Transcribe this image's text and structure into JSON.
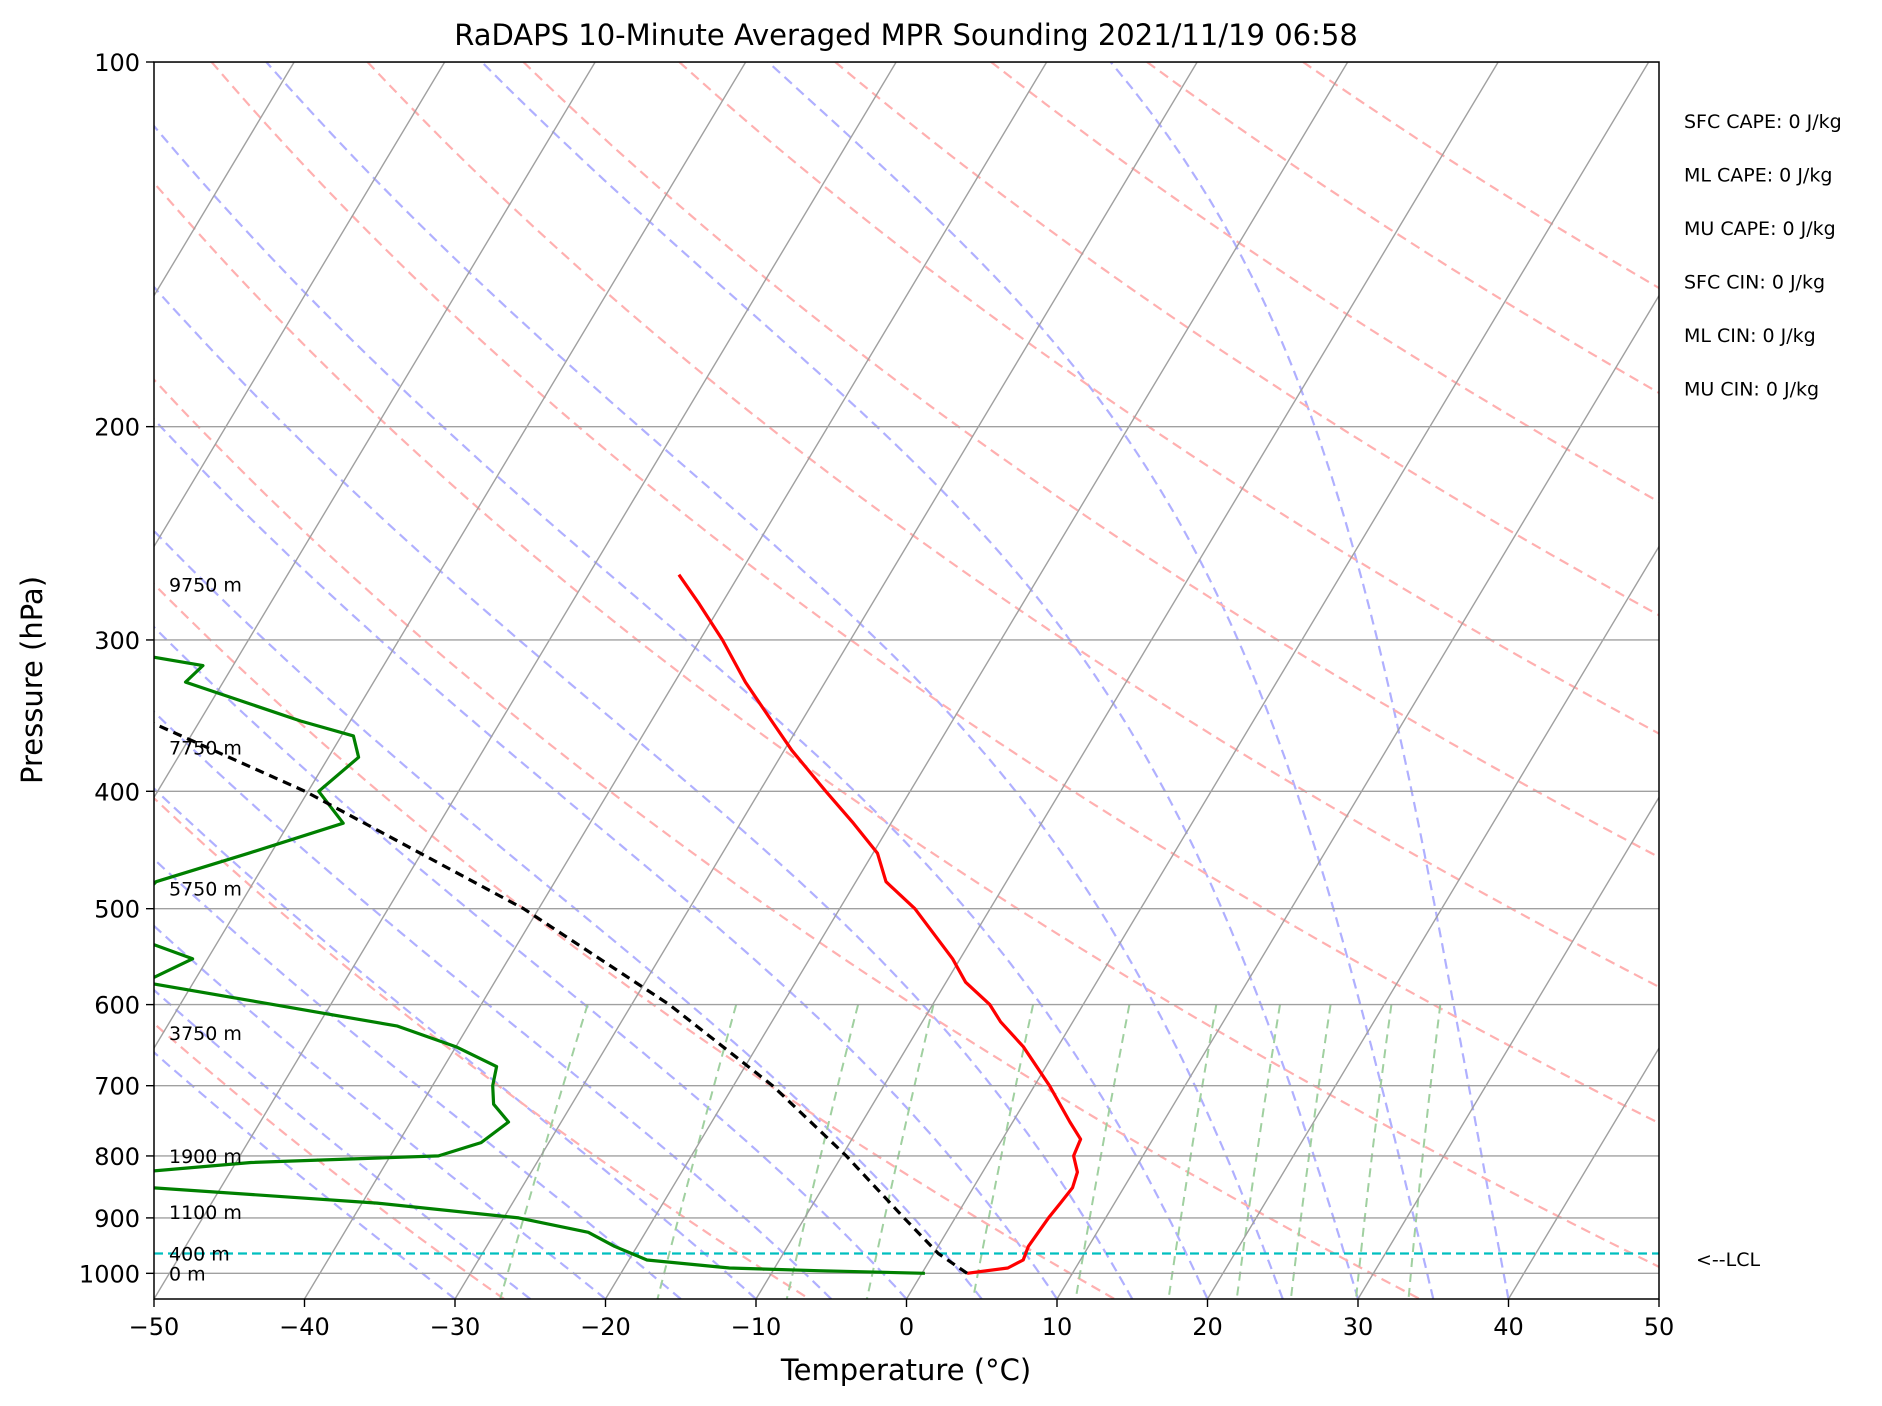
{
  "chart_data": {
    "type": "line",
    "title": "RaDAPS 10-Minute Averaged MPR Sounding 2021/11/19 06:58",
    "xlabel": "Temperature (°C)",
    "ylabel": "Pressure (hPa)",
    "xlim": [
      -50,
      50
    ],
    "ylim": [
      1050,
      100
    ],
    "yscale": "log",
    "skew": true,
    "grid": true,
    "x_ticks": [
      "−50",
      "−40",
      "−30",
      "−20",
      "−10",
      "0",
      "10",
      "20",
      "30",
      "40",
      "50"
    ],
    "x_tick_values": [
      -50,
      -40,
      -30,
      -20,
      -10,
      0,
      10,
      20,
      30,
      40,
      50
    ],
    "y_ticks": [
      "100",
      "200",
      "300",
      "400",
      "500",
      "600",
      "700",
      "800",
      "900",
      "1000"
    ],
    "y_tick_values": [
      100,
      200,
      300,
      400,
      500,
      600,
      700,
      800,
      900,
      1000
    ],
    "series": [
      {
        "key": "temperature",
        "color": "#ff0000",
        "points": [
          [
            1000,
            3.0
          ],
          [
            990,
            5.5
          ],
          [
            975,
            6.2
          ],
          [
            950,
            6.0
          ],
          [
            925,
            6.1
          ],
          [
            900,
            6.2
          ],
          [
            875,
            6.4
          ],
          [
            850,
            6.6
          ],
          [
            825,
            6.3
          ],
          [
            800,
            5.4
          ],
          [
            775,
            5.2
          ],
          [
            750,
            3.8
          ],
          [
            700,
            1.0
          ],
          [
            650,
            -2.3
          ],
          [
            620,
            -4.8
          ],
          [
            600,
            -6.2
          ],
          [
            575,
            -8.7
          ],
          [
            550,
            -10.5
          ],
          [
            500,
            -15.0
          ],
          [
            475,
            -18.0
          ],
          [
            450,
            -19.7
          ],
          [
            425,
            -22.5
          ],
          [
            400,
            -25.6
          ],
          [
            370,
            -29.5
          ],
          [
            350,
            -32.0
          ],
          [
            325,
            -35.3
          ],
          [
            300,
            -38.5
          ],
          [
            280,
            -41.5
          ],
          [
            265,
            -44.0
          ]
        ]
      },
      {
        "key": "dewpoint",
        "color": "#008000",
        "points": [
          [
            1000,
            0.2
          ],
          [
            995,
            -7.0
          ],
          [
            990,
            -13.0
          ],
          [
            975,
            -18.8
          ],
          [
            950,
            -21.5
          ],
          [
            925,
            -23.8
          ],
          [
            900,
            -29.0
          ],
          [
            875,
            -39.0
          ],
          [
            850,
            -54.5
          ],
          [
            825,
            -56.0
          ],
          [
            810,
            -49.0
          ],
          [
            800,
            -36.8
          ],
          [
            780,
            -34.5
          ],
          [
            750,
            -33.5
          ],
          [
            725,
            -35.2
          ],
          [
            700,
            -36.0
          ],
          [
            675,
            -36.5
          ],
          [
            650,
            -40.0
          ],
          [
            625,
            -44.7
          ],
          [
            600,
            -53.8
          ],
          [
            575,
            -63.3
          ],
          [
            550,
            -61.0
          ],
          [
            525,
            -66.4
          ],
          [
            500,
            -67.2
          ],
          [
            475,
            -66.5
          ],
          [
            450,
            -61.5
          ],
          [
            425,
            -56.4
          ],
          [
            400,
            -59.3
          ],
          [
            375,
            -58.0
          ],
          [
            360,
            -59.2
          ],
          [
            350,
            -63.3
          ],
          [
            325,
            -72.5
          ],
          [
            315,
            -72.0
          ],
          [
            300,
            -83.0
          ],
          [
            295,
            -95.0
          ],
          [
            293,
            -123.0
          ]
        ]
      },
      {
        "key": "parcel",
        "color": "#000000",
        "dashed": true,
        "points": [
          [
            1000,
            3.0
          ],
          [
            963,
            0.3
          ],
          [
            900,
            -3.4
          ],
          [
            800,
            -9.7
          ],
          [
            700,
            -17.4
          ],
          [
            600,
            -27.5
          ],
          [
            500,
            -41.0
          ],
          [
            400,
            -60.2
          ],
          [
            300,
            -88.7
          ],
          [
            270,
            -100.0
          ]
        ]
      }
    ],
    "lcl_pressure": 963,
    "lcl_label": "<--LCL",
    "height_labels": [
      {
        "text": "9750 m",
        "pressure": 270
      },
      {
        "text": "7750 m",
        "pressure": 368
      },
      {
        "text": "5750 m",
        "pressure": 481
      },
      {
        "text": "3750 m",
        "pressure": 633
      },
      {
        "text": "1900 m",
        "pressure": 800
      },
      {
        "text": "1100 m",
        "pressure": 890
      },
      {
        "text": "400 m",
        "pressure": 963
      },
      {
        "text": "0 m",
        "pressure": 1000
      }
    ],
    "parameters": [
      "SFC CAPE: 0 J/kg",
      "ML CAPE: 0 J/kg",
      "MU CAPE: 0 J/kg",
      "SFC CIN: 0 J/kg",
      "ML CIN: 0 J/kg",
      "MU CIN: 0 J/kg"
    ],
    "colors": {
      "isotherm": "#a0a0a0",
      "isobar": "#a0a0a0",
      "dry_adiabat": "#ffb0b0",
      "moist_adiabat": "#b0b0ff",
      "mixing_ratio": "#a0d0a0",
      "lcl_line": "#00bfbf"
    }
  }
}
